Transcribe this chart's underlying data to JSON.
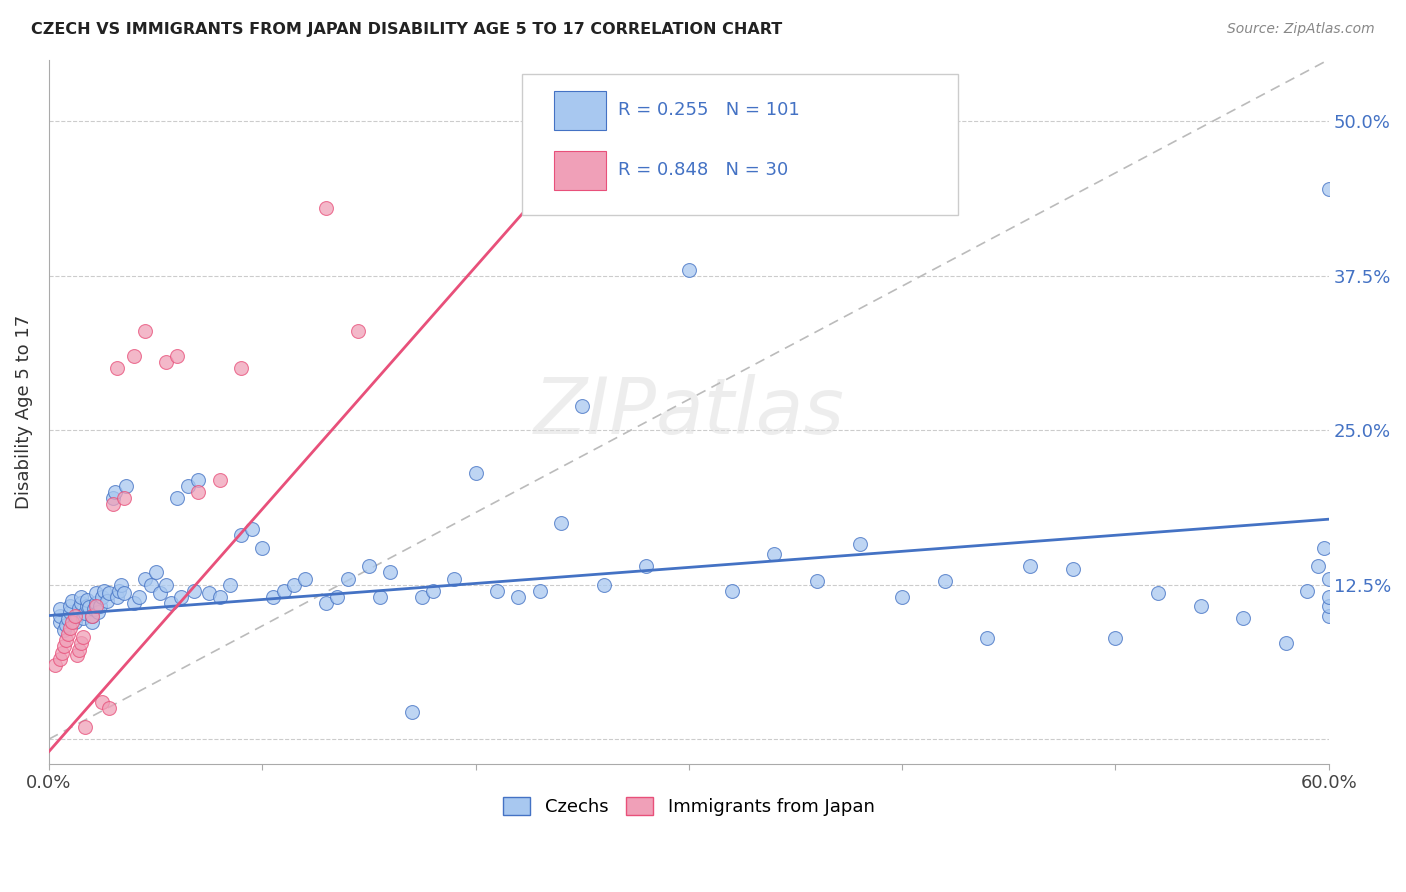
{
  "title": "CZECH VS IMMIGRANTS FROM JAPAN DISABILITY AGE 5 TO 17 CORRELATION CHART",
  "source": "Source: ZipAtlas.com",
  "ylabel": "Disability Age 5 to 17",
  "xlim": [
    0.0,
    0.6
  ],
  "ylim": [
    -0.02,
    0.55
  ],
  "xticks": [
    0.0,
    0.1,
    0.2,
    0.3,
    0.4,
    0.5,
    0.6
  ],
  "xticklabels": [
    "0.0%",
    "",
    "",
    "",
    "",
    "",
    "60.0%"
  ],
  "yticks": [
    0.0,
    0.125,
    0.25,
    0.375,
    0.5
  ],
  "yticklabels": [
    "",
    "12.5%",
    "25.0%",
    "37.5%",
    "50.0%"
  ],
  "czech_color": "#A8C8F0",
  "japan_color": "#F0A0B8",
  "czech_line_color": "#4472C4",
  "japan_line_color": "#E8507A",
  "ref_dash_color": "#BBBBBB",
  "background_color": "#FFFFFF",
  "grid_color": "#CCCCCC",
  "legend_R_czech": "0.255",
  "legend_N_czech": "101",
  "legend_R_japan": "0.848",
  "legend_N_japan": "30",
  "czech_x": [
    0.005,
    0.005,
    0.005,
    0.007,
    0.008,
    0.009,
    0.01,
    0.01,
    0.011,
    0.012,
    0.013,
    0.014,
    0.015,
    0.015,
    0.016,
    0.017,
    0.018,
    0.018,
    0.019,
    0.02,
    0.02,
    0.021,
    0.022,
    0.022,
    0.023,
    0.024,
    0.025,
    0.026,
    0.027,
    0.028,
    0.03,
    0.031,
    0.032,
    0.033,
    0.034,
    0.035,
    0.036,
    0.04,
    0.042,
    0.045,
    0.048,
    0.05,
    0.052,
    0.055,
    0.057,
    0.06,
    0.062,
    0.065,
    0.068,
    0.07,
    0.075,
    0.08,
    0.085,
    0.09,
    0.095,
    0.1,
    0.105,
    0.11,
    0.115,
    0.12,
    0.13,
    0.135,
    0.14,
    0.15,
    0.155,
    0.16,
    0.17,
    0.175,
    0.18,
    0.19,
    0.2,
    0.21,
    0.22,
    0.23,
    0.24,
    0.25,
    0.26,
    0.28,
    0.3,
    0.32,
    0.34,
    0.36,
    0.38,
    0.4,
    0.42,
    0.44,
    0.46,
    0.48,
    0.5,
    0.52,
    0.54,
    0.56,
    0.58,
    0.59,
    0.595,
    0.598,
    0.6,
    0.6,
    0.6,
    0.6,
    0.6
  ],
  "czech_y": [
    0.095,
    0.1,
    0.105,
    0.088,
    0.092,
    0.097,
    0.103,
    0.108,
    0.112,
    0.095,
    0.1,
    0.106,
    0.11,
    0.115,
    0.098,
    0.102,
    0.108,
    0.113,
    0.107,
    0.095,
    0.1,
    0.105,
    0.11,
    0.118,
    0.103,
    0.108,
    0.115,
    0.12,
    0.112,
    0.118,
    0.195,
    0.2,
    0.115,
    0.12,
    0.125,
    0.118,
    0.205,
    0.11,
    0.115,
    0.13,
    0.125,
    0.135,
    0.118,
    0.125,
    0.11,
    0.195,
    0.115,
    0.205,
    0.12,
    0.21,
    0.118,
    0.115,
    0.125,
    0.165,
    0.17,
    0.155,
    0.115,
    0.12,
    0.125,
    0.13,
    0.11,
    0.115,
    0.13,
    0.14,
    0.115,
    0.135,
    0.022,
    0.115,
    0.12,
    0.13,
    0.215,
    0.12,
    0.115,
    0.12,
    0.175,
    0.27,
    0.125,
    0.14,
    0.38,
    0.12,
    0.15,
    0.128,
    0.158,
    0.115,
    0.128,
    0.082,
    0.14,
    0.138,
    0.082,
    0.118,
    0.108,
    0.098,
    0.078,
    0.12,
    0.14,
    0.155,
    0.445,
    0.1,
    0.108,
    0.115,
    0.13
  ],
  "japan_x": [
    0.003,
    0.005,
    0.006,
    0.007,
    0.008,
    0.009,
    0.01,
    0.011,
    0.012,
    0.013,
    0.014,
    0.015,
    0.016,
    0.017,
    0.02,
    0.022,
    0.025,
    0.028,
    0.03,
    0.032,
    0.035,
    0.04,
    0.045,
    0.055,
    0.06,
    0.07,
    0.08,
    0.09,
    0.13,
    0.145
  ],
  "japan_y": [
    0.06,
    0.065,
    0.07,
    0.075,
    0.08,
    0.085,
    0.09,
    0.095,
    0.1,
    0.068,
    0.072,
    0.078,
    0.083,
    0.01,
    0.1,
    0.108,
    0.03,
    0.025,
    0.19,
    0.3,
    0.195,
    0.31,
    0.33,
    0.305,
    0.31,
    0.2,
    0.21,
    0.3,
    0.43,
    0.33
  ]
}
